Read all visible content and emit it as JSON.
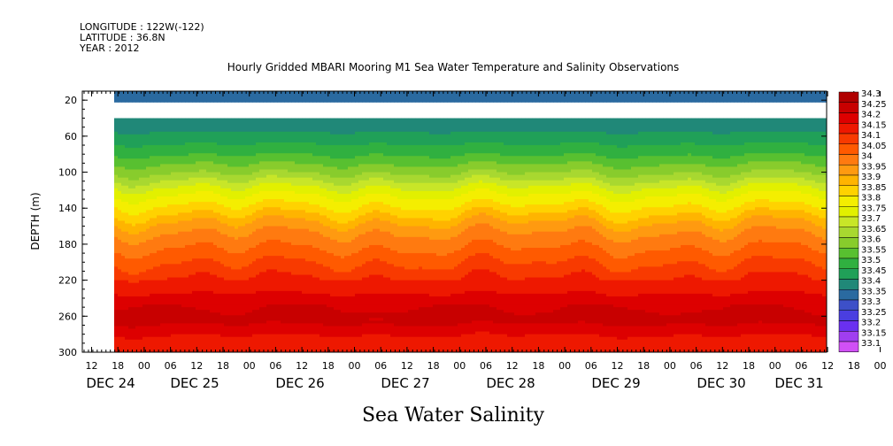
{
  "header": {
    "longitude": "LONGITUDE : 122W(-122)",
    "latitude": "LATITUDE : 36.8N",
    "year": "YEAR : 2012"
  },
  "chart_data": {
    "type": "heatmap",
    "title": "Hourly Gridded MBARI Mooring M1 Sea Water Temperature and Salinity Observations",
    "xlabel": "Sea Water Salinity",
    "ylabel": "DEPTH (m)",
    "ylim": [
      300,
      10
    ],
    "y_ticks": [
      "20",
      "60",
      "100",
      "140",
      "180",
      "220",
      "260",
      "300"
    ],
    "x_hour_ticks": [
      "12",
      "18",
      "00",
      "06",
      "12",
      "18",
      "00",
      "06",
      "12",
      "18",
      "00",
      "06",
      "12",
      "18",
      "00",
      "06",
      "12",
      "18",
      "00",
      "06",
      "12",
      "18",
      "00",
      "06",
      "12",
      "18",
      "00",
      "06",
      "12",
      "18",
      "00",
      "06"
    ],
    "x_day_ticks": [
      "DEC 24",
      "DEC 25",
      "DEC 26",
      "DEC 27",
      "DEC 28",
      "DEC 29",
      "DEC 30",
      "DEC 31"
    ],
    "colorbar_levels": [
      "34.3",
      "34.25",
      "34.2",
      "34.15",
      "34.1",
      "34.05",
      "34",
      "33.95",
      "33.9",
      "33.85",
      "33.8",
      "33.75",
      "33.7",
      "33.65",
      "33.6",
      "33.55",
      "33.5",
      "33.45",
      "33.4",
      "33.35",
      "33.3",
      "33.25",
      "33.2",
      "33.15",
      "33.1"
    ],
    "colorbar_colors": [
      "#b00000",
      "#c80000",
      "#dd0000",
      "#ee1800",
      "#f83a00",
      "#ff5a00",
      "#ff7a10",
      "#ff9a10",
      "#ffb400",
      "#ffd200",
      "#f4ee00",
      "#e2f000",
      "#c8e628",
      "#a8d830",
      "#88cc2c",
      "#58c030",
      "#30b040",
      "#20a058",
      "#208878",
      "#2a6aa0",
      "#3d50c8",
      "#4a3ee0",
      "#6a30f0",
      "#a03ef0",
      "#d050f5"
    ],
    "depth_profile": {
      "depths": [
        10,
        20,
        40,
        60,
        80,
        100,
        120,
        140,
        160,
        180,
        200,
        220,
        240,
        260,
        280,
        300
      ],
      "salinity": [
        33.35,
        33.35,
        33.4,
        33.47,
        33.55,
        33.65,
        33.78,
        33.87,
        33.98,
        34.04,
        34.1,
        34.16,
        34.22,
        34.28,
        34.2,
        34.16
      ]
    },
    "grid": false
  }
}
